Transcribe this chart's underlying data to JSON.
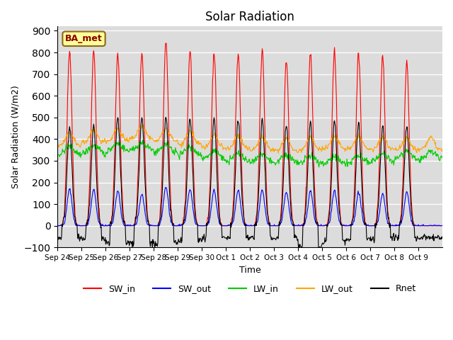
{
  "title": "Solar Radiation",
  "ylabel": "Solar Radiation (W/m2)",
  "xlabel": "Time",
  "ylim": [
    -100,
    920
  ],
  "yticks": [
    -100,
    0,
    100,
    200,
    300,
    400,
    500,
    600,
    700,
    800,
    900
  ],
  "bg_color": "#dcdcdc",
  "annotation_text": "BA_met",
  "annotation_bg": "#ffff99",
  "annotation_border": "#8B6914",
  "colors": {
    "SW_in": "#ff0000",
    "SW_out": "#0000ff",
    "LW_in": "#00cc00",
    "LW_out": "#ffa500",
    "Rnet": "#000000"
  },
  "num_days": 16,
  "x_tick_labels": [
    "Sep 24",
    "Sep 25",
    "Sep 26",
    "Sep 27",
    "Sep 28",
    "Sep 29",
    "Sep 30",
    "Oct 1",
    "Oct 2",
    "Oct 3",
    "Oct 4",
    "Oct 5",
    "Oct 6",
    "Oct 7",
    "Oct 8",
    "Oct 9"
  ],
  "legend_entries": [
    "SW_in",
    "SW_out",
    "LW_in",
    "LW_out",
    "Rnet"
  ],
  "SW_in_peaks": [
    810,
    800,
    790,
    790,
    860,
    810,
    800,
    800,
    810,
    760,
    800,
    800,
    800,
    780,
    750,
    0
  ],
  "SW_out_peaks": [
    170,
    165,
    160,
    145,
    180,
    170,
    165,
    165,
    165,
    155,
    160,
    160,
    155,
    150,
    155,
    0
  ],
  "LW_in_base": [
    325,
    330,
    340,
    345,
    335,
    325,
    305,
    295,
    290,
    285,
    285,
    280,
    285,
    295,
    305,
    305
  ],
  "LW_out_base": [
    370,
    385,
    390,
    400,
    390,
    375,
    360,
    355,
    350,
    345,
    350,
    355,
    355,
    350,
    350,
    350
  ],
  "Rnet_peaks": [
    460,
    460,
    500,
    500,
    500,
    490,
    490,
    490,
    490,
    465,
    480,
    480,
    470,
    465,
    465,
    0
  ],
  "night_rnet": [
    -55,
    -55,
    -80,
    -80,
    -80,
    -70,
    -55,
    -55,
    -55,
    -55,
    -100,
    -70,
    -65,
    -60,
    -55,
    -55
  ]
}
